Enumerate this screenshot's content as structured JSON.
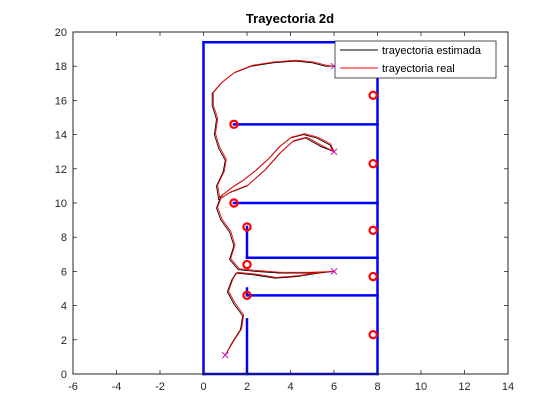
{
  "chart_data": {
    "type": "line",
    "title": "Trayectoria 2d",
    "xlabel": "",
    "ylabel": "",
    "xlim": [
      -6,
      14
    ],
    "ylim": [
      0,
      20
    ],
    "xticks": [
      -6,
      -4,
      -2,
      0,
      2,
      4,
      6,
      8,
      10,
      12,
      14
    ],
    "yticks": [
      0,
      2,
      4,
      6,
      8,
      10,
      12,
      14,
      16,
      18,
      20
    ],
    "grid": false,
    "legend_position": "top-right",
    "colors": {
      "walls": "#0000ff",
      "landmarks": "#ff0000",
      "estimated": "#000000",
      "real": "#ff0000",
      "markers": "#cc00cc",
      "axis": "#262626"
    },
    "walls": [
      [
        [
          0,
          0
        ],
        [
          0,
          19.4
        ]
      ],
      [
        [
          0,
          19.4
        ],
        [
          8,
          19.4
        ]
      ],
      [
        [
          8,
          19.4
        ],
        [
          8,
          0
        ]
      ],
      [
        [
          0,
          0
        ],
        [
          8,
          0
        ]
      ],
      [
        [
          1.4,
          14.6
        ],
        [
          8,
          14.6
        ]
      ],
      [
        [
          1.4,
          10.0
        ],
        [
          8,
          10.0
        ]
      ],
      [
        [
          2,
          8.6
        ],
        [
          2,
          6.8
        ]
      ],
      [
        [
          2,
          6.8
        ],
        [
          8,
          6.8
        ]
      ],
      [
        [
          2,
          4.6
        ],
        [
          8,
          4.6
        ]
      ],
      [
        [
          2,
          4.6
        ],
        [
          2,
          5.0
        ]
      ],
      [
        [
          2,
          3.2
        ],
        [
          2,
          0
        ]
      ]
    ],
    "landmarks": [
      [
        1.4,
        14.6
      ],
      [
        1.4,
        10.0
      ],
      [
        2,
        8.6
      ],
      [
        2,
        6.4
      ],
      [
        2,
        4.6
      ],
      [
        7.8,
        16.3
      ],
      [
        7.8,
        12.3
      ],
      [
        7.8,
        8.4
      ],
      [
        7.8,
        5.7
      ],
      [
        7.8,
        2.3
      ]
    ],
    "series": [
      {
        "name": "trayectoria estimada",
        "points": [
          [
            1.0,
            1.1
          ],
          [
            1.3,
            1.8
          ],
          [
            1.7,
            2.6
          ],
          [
            1.8,
            3.4
          ],
          [
            1.4,
            4.1
          ],
          [
            1.1,
            4.8
          ],
          [
            1.3,
            5.5
          ],
          [
            1.5,
            5.9
          ],
          [
            2.3,
            5.8
          ],
          [
            3.3,
            5.6
          ],
          [
            4.3,
            5.7
          ],
          [
            5.3,
            5.9
          ],
          [
            6.0,
            6.0
          ],
          [
            4.8,
            5.9
          ],
          [
            3.5,
            5.9
          ],
          [
            2.4,
            6.0
          ],
          [
            1.6,
            6.1
          ],
          [
            1.2,
            6.7
          ],
          [
            1.4,
            7.5
          ],
          [
            1.2,
            8.3
          ],
          [
            0.8,
            9.0
          ],
          [
            0.6,
            9.7
          ],
          [
            0.8,
            10.4
          ],
          [
            1.3,
            10.9
          ],
          [
            1.8,
            11.3
          ],
          [
            2.4,
            11.9
          ],
          [
            3.0,
            12.6
          ],
          [
            3.5,
            13.3
          ],
          [
            4.0,
            13.8
          ],
          [
            4.6,
            14.0
          ],
          [
            5.2,
            13.8
          ],
          [
            5.8,
            13.4
          ],
          [
            6.0,
            13.0
          ],
          [
            5.4,
            13.3
          ],
          [
            4.7,
            13.8
          ],
          [
            4.1,
            13.6
          ],
          [
            3.5,
            12.9
          ],
          [
            2.8,
            11.9
          ],
          [
            2.0,
            11.0
          ],
          [
            1.2,
            10.6
          ],
          [
            0.7,
            10.2
          ],
          [
            0.6,
            11.0
          ],
          [
            0.9,
            11.8
          ],
          [
            1.0,
            12.5
          ],
          [
            0.7,
            13.2
          ],
          [
            0.5,
            14.0
          ],
          [
            0.6,
            14.9
          ],
          [
            0.4,
            15.7
          ],
          [
            0.4,
            16.4
          ],
          [
            0.8,
            17.0
          ],
          [
            1.4,
            17.6
          ],
          [
            2.2,
            18.0
          ],
          [
            3.2,
            18.2
          ],
          [
            4.2,
            18.3
          ],
          [
            5.0,
            18.2
          ],
          [
            5.6,
            18.0
          ],
          [
            6.0,
            18.0
          ]
        ]
      },
      {
        "name": "trayectoria real",
        "points": [
          [
            1.0,
            1.1
          ],
          [
            1.35,
            1.85
          ],
          [
            1.75,
            2.65
          ],
          [
            1.85,
            3.45
          ],
          [
            1.45,
            4.15
          ],
          [
            1.15,
            4.85
          ],
          [
            1.35,
            5.55
          ],
          [
            1.55,
            5.95
          ],
          [
            2.35,
            5.85
          ],
          [
            3.35,
            5.65
          ],
          [
            4.35,
            5.75
          ],
          [
            5.35,
            5.95
          ],
          [
            6.0,
            6.0
          ],
          [
            4.85,
            5.95
          ],
          [
            3.55,
            5.95
          ],
          [
            2.45,
            6.05
          ],
          [
            1.65,
            6.15
          ],
          [
            1.25,
            6.75
          ],
          [
            1.45,
            7.55
          ],
          [
            1.25,
            8.35
          ],
          [
            0.85,
            9.05
          ],
          [
            0.65,
            9.75
          ],
          [
            0.85,
            10.45
          ],
          [
            1.35,
            10.95
          ],
          [
            1.85,
            11.35
          ],
          [
            2.45,
            11.95
          ],
          [
            3.05,
            12.65
          ],
          [
            3.55,
            13.35
          ],
          [
            4.05,
            13.85
          ],
          [
            4.65,
            14.05
          ],
          [
            5.25,
            13.85
          ],
          [
            5.85,
            13.45
          ],
          [
            6.0,
            13.0
          ],
          [
            5.45,
            13.35
          ],
          [
            4.75,
            13.85
          ],
          [
            4.15,
            13.65
          ],
          [
            3.55,
            12.95
          ],
          [
            2.85,
            11.95
          ],
          [
            2.05,
            11.05
          ],
          [
            1.25,
            10.65
          ],
          [
            0.75,
            10.25
          ],
          [
            0.65,
            11.05
          ],
          [
            0.95,
            11.85
          ],
          [
            1.05,
            12.55
          ],
          [
            0.75,
            13.25
          ],
          [
            0.55,
            14.05
          ],
          [
            0.65,
            14.95
          ],
          [
            0.45,
            15.75
          ],
          [
            0.45,
            16.45
          ],
          [
            0.85,
            17.05
          ],
          [
            1.45,
            17.65
          ],
          [
            2.25,
            18.05
          ],
          [
            3.25,
            18.25
          ],
          [
            4.25,
            18.35
          ],
          [
            5.05,
            18.25
          ],
          [
            5.65,
            18.05
          ],
          [
            6.0,
            18.0
          ]
        ]
      }
    ],
    "cross_markers": [
      [
        1.0,
        1.1
      ],
      [
        6.0,
        6.0
      ],
      [
        6.0,
        13.0
      ],
      [
        6.0,
        18.0
      ]
    ]
  }
}
